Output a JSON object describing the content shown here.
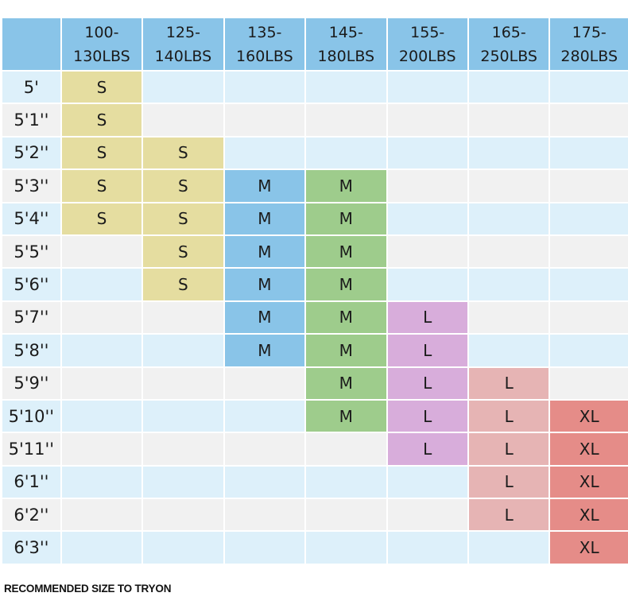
{
  "weights": [
    "100-\n130LBS",
    "125-\n140LBS",
    "135-\n160LBS",
    "145-\n180LBS",
    "155-\n200LBS",
    "165-\n250LBS",
    "175-\n280LBS"
  ],
  "rows": [
    {
      "height": "5'",
      "sizes": [
        "S",
        "",
        "",
        "",
        "",
        "",
        ""
      ]
    },
    {
      "height": "5'1''",
      "sizes": [
        "S",
        "",
        "",
        "",
        "",
        "",
        ""
      ]
    },
    {
      "height": "5'2''",
      "sizes": [
        "S",
        "S",
        "",
        "",
        "",
        "",
        ""
      ]
    },
    {
      "height": "5'3''",
      "sizes": [
        "S",
        "S",
        "M",
        "M",
        "",
        "",
        ""
      ]
    },
    {
      "height": "5'4''",
      "sizes": [
        "S",
        "S",
        "M",
        "M",
        "",
        "",
        ""
      ]
    },
    {
      "height": "5'5''",
      "sizes": [
        "",
        "S",
        "M",
        "M",
        "",
        "",
        ""
      ]
    },
    {
      "height": "5'6''",
      "sizes": [
        "",
        "S",
        "M",
        "M",
        "",
        "",
        ""
      ]
    },
    {
      "height": "5'7''",
      "sizes": [
        "",
        "",
        "M",
        "M",
        "L",
        "",
        ""
      ]
    },
    {
      "height": "5'8''",
      "sizes": [
        "",
        "",
        "M",
        "M",
        "L",
        "",
        ""
      ]
    },
    {
      "height": "5'9''",
      "sizes": [
        "",
        "",
        "",
        "M",
        "L",
        "L",
        ""
      ]
    },
    {
      "height": "5'10''",
      "sizes": [
        "",
        "",
        "",
        "M",
        "L",
        "L",
        "XL"
      ]
    },
    {
      "height": "5'11''",
      "sizes": [
        "",
        "",
        "",
        "",
        "L",
        "L",
        "XL"
      ]
    },
    {
      "height": "6'1''",
      "sizes": [
        "",
        "",
        "",
        "",
        "",
        "L",
        "XL"
      ]
    },
    {
      "height": "6'2''",
      "sizes": [
        "",
        "",
        "",
        "",
        "",
        "L",
        "XL"
      ]
    },
    {
      "height": "6'3''",
      "sizes": [
        "",
        "",
        "",
        "",
        "",
        "",
        "XL"
      ]
    }
  ],
  "footnote": "RECOMMENDED SIZE TO TRYON",
  "colors": {
    "header": "#89c4e8",
    "row_light_blue": "#ddf0fa",
    "row_light_gray": "#f1f1f1",
    "size_S": "#e5dda0",
    "size_M_blue": "#89c4e8",
    "size_M_green": "#9ecc8c",
    "size_L_purple": "#d8addb",
    "size_L_pink": "#e6b4b4",
    "size_XL": "#e58c88"
  }
}
